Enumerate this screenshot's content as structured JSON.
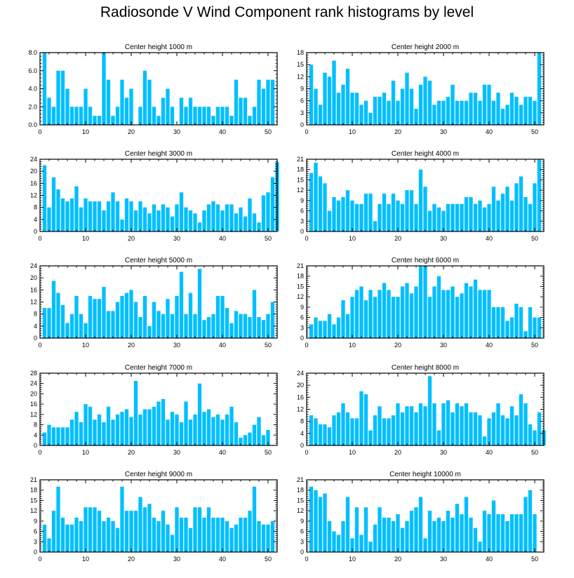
{
  "title": "Radiosonde V Wind Component rank histograms by level",
  "colors": {
    "bar": "#00bfff",
    "axis": "#000000",
    "background": "#ffffff"
  },
  "chart_data": [
    {
      "type": "bar",
      "title": "Center height 1000 m",
      "xlim": [
        0,
        52
      ],
      "xticks": [
        0,
        10,
        20,
        30,
        40,
        50
      ],
      "ylim": [
        0,
        8
      ],
      "yticks": [
        0,
        2,
        4,
        6,
        8
      ],
      "ytick_labels": [
        "0.0",
        "2.0",
        "4.0",
        "6.0",
        "8.0"
      ],
      "values": [
        8,
        3,
        2,
        6,
        6,
        4,
        2,
        2,
        2,
        4,
        2,
        1,
        1,
        8,
        5,
        1,
        2,
        5,
        3,
        4,
        0,
        2,
        6,
        5,
        2,
        1,
        3,
        4,
        2,
        0,
        3,
        2,
        3,
        2,
        2,
        2,
        2,
        1,
        2,
        2,
        2,
        1,
        5,
        3,
        3,
        1,
        2,
        5,
        4,
        5,
        5
      ]
    },
    {
      "type": "bar",
      "title": "Center height 2000 m",
      "xlim": [
        0,
        52
      ],
      "xticks": [
        0,
        10,
        20,
        30,
        40,
        50
      ],
      "ylim": [
        0,
        18
      ],
      "yticks": [
        0,
        3,
        6,
        9,
        12,
        15,
        18
      ],
      "ytick_labels": [
        "0",
        "3",
        "6",
        "9",
        "12",
        "15",
        "18"
      ],
      "values": [
        15,
        9,
        5,
        13,
        12,
        16,
        8,
        10,
        14,
        8,
        8,
        5,
        6,
        3,
        7,
        7,
        8,
        6,
        11,
        6,
        9,
        13,
        9,
        4,
        10,
        12,
        11,
        5,
        6,
        6,
        7,
        10,
        6,
        6,
        6,
        8,
        8,
        6,
        10,
        10,
        6,
        8,
        4,
        5,
        8,
        7,
        5,
        7,
        7,
        6,
        18
      ]
    },
    {
      "type": "bar",
      "title": "Center height 3000 m",
      "xlim": [
        0,
        52
      ],
      "xticks": [
        0,
        10,
        20,
        30,
        40,
        50
      ],
      "ylim": [
        0,
        24
      ],
      "yticks": [
        0,
        4,
        8,
        12,
        16,
        20,
        24
      ],
      "ytick_labels": [
        "0",
        "4",
        "8",
        "12",
        "16",
        "20",
        "24"
      ],
      "values": [
        22,
        8,
        18,
        14,
        11,
        10,
        11,
        15,
        8,
        11,
        10,
        10,
        10,
        7,
        10,
        13,
        10,
        4,
        11,
        10,
        7,
        10,
        8,
        6,
        9,
        7,
        9,
        8,
        5,
        9,
        13,
        8,
        7,
        6,
        3,
        7,
        9,
        10,
        9,
        7,
        9,
        9,
        6,
        8,
        5,
        11,
        6,
        3,
        12,
        13,
        18,
        23
      ]
    },
    {
      "type": "bar",
      "title": "Center height 4000 m",
      "xlim": [
        0,
        52
      ],
      "xticks": [
        0,
        10,
        20,
        30,
        40,
        50
      ],
      "ylim": [
        0,
        21
      ],
      "yticks": [
        0,
        3,
        6,
        9,
        12,
        15,
        18,
        21
      ],
      "ytick_labels": [
        "0",
        "3",
        "6",
        "9",
        "12",
        "15",
        "18",
        "21"
      ],
      "values": [
        17,
        20,
        16,
        14,
        6,
        10,
        9,
        10,
        12,
        9,
        8,
        8,
        11,
        11,
        3,
        8,
        11,
        8,
        11,
        9,
        8,
        12,
        12,
        8,
        18,
        13,
        6,
        8,
        7,
        6,
        8,
        8,
        8,
        8,
        10,
        10,
        8,
        9,
        7,
        8,
        13,
        9,
        11,
        13,
        9,
        14,
        16,
        10,
        8,
        14,
        21
      ]
    },
    {
      "type": "bar",
      "title": "Center height 5000 m",
      "xlim": [
        0,
        52
      ],
      "xticks": [
        0,
        10,
        20,
        30,
        40,
        50
      ],
      "ylim": [
        0,
        24
      ],
      "yticks": [
        0,
        4,
        8,
        12,
        16,
        20,
        24
      ],
      "ytick_labels": [
        "0",
        "4",
        "8",
        "12",
        "16",
        "20",
        "24"
      ],
      "values": [
        10,
        10,
        19,
        15,
        11,
        5,
        8,
        14,
        8,
        5,
        14,
        13,
        13,
        17,
        9,
        9,
        12,
        14,
        15,
        16,
        12,
        7,
        14,
        4,
        12,
        9,
        8,
        13,
        8,
        14,
        22,
        8,
        15,
        8,
        23,
        6,
        7,
        8,
        14,
        14,
        10,
        5,
        9,
        8,
        8,
        7,
        16,
        7,
        6,
        8,
        12
      ]
    },
    {
      "type": "bar",
      "title": "Center height 6000 m",
      "xlim": [
        0,
        52
      ],
      "xticks": [
        0,
        10,
        20,
        30,
        40,
        50
      ],
      "ylim": [
        0,
        21
      ],
      "yticks": [
        0,
        3,
        6,
        9,
        12,
        15,
        18,
        21
      ],
      "ytick_labels": [
        "0",
        "3",
        "6",
        "9",
        "12",
        "15",
        "18",
        "21"
      ],
      "values": [
        4,
        6,
        5,
        5,
        7,
        4,
        6,
        11,
        7,
        12,
        14,
        15,
        11,
        14,
        12,
        14,
        16,
        14,
        12,
        12,
        15,
        16,
        13,
        15,
        21,
        21,
        12,
        15,
        18,
        14,
        14,
        15,
        12,
        13,
        16,
        15,
        17,
        14,
        14,
        14,
        9,
        9,
        9,
        5,
        6,
        10,
        9,
        2,
        9,
        6,
        6
      ]
    },
    {
      "type": "bar",
      "title": "Center height 7000 m",
      "xlim": [
        0,
        52
      ],
      "xticks": [
        0,
        10,
        20,
        30,
        40,
        50
      ],
      "ylim": [
        0,
        28
      ],
      "yticks": [
        0,
        4,
        8,
        12,
        16,
        20,
        24,
        28
      ],
      "ytick_labels": [
        "0",
        "4",
        "8",
        "12",
        "16",
        "20",
        "24",
        "28"
      ],
      "values": [
        5,
        8,
        7,
        7,
        7,
        7,
        10,
        13,
        9,
        16,
        15,
        10,
        12,
        9,
        15,
        10,
        12,
        13,
        14,
        11,
        25,
        12,
        14,
        14,
        15,
        17,
        18,
        10,
        13,
        12,
        9,
        17,
        10,
        12,
        24,
        13,
        14,
        11,
        12,
        10,
        12,
        15,
        9,
        3,
        4,
        5,
        8,
        11,
        4,
        6,
        0
      ]
    },
    {
      "type": "bar",
      "title": "Center height 8000 m",
      "xlim": [
        0,
        52
      ],
      "xticks": [
        0,
        10,
        20,
        30,
        40,
        50
      ],
      "ylim": [
        0,
        24
      ],
      "yticks": [
        0,
        4,
        8,
        12,
        16,
        20,
        24
      ],
      "ytick_labels": [
        "0",
        "4",
        "8",
        "12",
        "16",
        "20",
        "24"
      ],
      "values": [
        10,
        9,
        7,
        7,
        6,
        10,
        11,
        14,
        11,
        9,
        9,
        18,
        17,
        5,
        10,
        13,
        9,
        9,
        10,
        14,
        11,
        13,
        13,
        11,
        14,
        13,
        23,
        14,
        5,
        14,
        15,
        11,
        14,
        13,
        14,
        11,
        11,
        10,
        3,
        9,
        11,
        14,
        10,
        9,
        13,
        10,
        17,
        14,
        7,
        5,
        11,
        5
      ]
    },
    {
      "type": "bar",
      "title": "Center height 9000 m",
      "xlim": [
        0,
        52
      ],
      "xticks": [
        0,
        10,
        20,
        30,
        40,
        50
      ],
      "ylim": [
        0,
        21
      ],
      "yticks": [
        0,
        3,
        6,
        9,
        12,
        15,
        18,
        21
      ],
      "ytick_labels": [
        "0",
        "3",
        "6",
        "9",
        "12",
        "15",
        "18",
        "21"
      ],
      "values": [
        8,
        4,
        12,
        19,
        10,
        8,
        8,
        10,
        9,
        13,
        13,
        13,
        12,
        9,
        10,
        9,
        7,
        19,
        12,
        12,
        12,
        16,
        13,
        14,
        10,
        9,
        12,
        8,
        5,
        13,
        10,
        10,
        7,
        13,
        13,
        10,
        13,
        10,
        10,
        10,
        9,
        7,
        8,
        10,
        10,
        12,
        19,
        9,
        8,
        8,
        9
      ]
    },
    {
      "type": "bar",
      "title": "Center height 10000 m",
      "xlim": [
        0,
        52
      ],
      "xticks": [
        0,
        10,
        20,
        30,
        40,
        50
      ],
      "ylim": [
        0,
        21
      ],
      "yticks": [
        0,
        3,
        6,
        9,
        12,
        15,
        18,
        21
      ],
      "ytick_labels": [
        "0",
        "3",
        "6",
        "9",
        "12",
        "15",
        "18",
        "21"
      ],
      "values": [
        19,
        18,
        16,
        17,
        9,
        6,
        5,
        9,
        16,
        4,
        13,
        5,
        13,
        3,
        8,
        13,
        10,
        10,
        9,
        11,
        7,
        9,
        12,
        13,
        16,
        4,
        12,
        9,
        10,
        9,
        12,
        10,
        14,
        11,
        16,
        10,
        7,
        3,
        12,
        11,
        15,
        11,
        11,
        9,
        11,
        11,
        11,
        16,
        18,
        11
      ]
    }
  ]
}
